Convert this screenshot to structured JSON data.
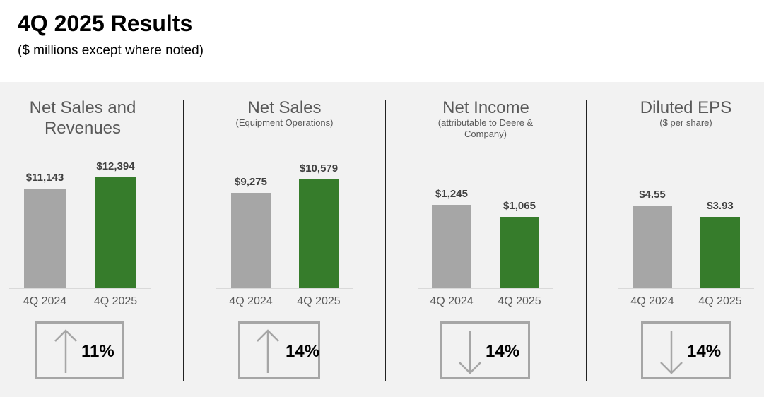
{
  "header": {
    "title": "4Q 2025 Results",
    "subtitle": "($ millions except where noted)"
  },
  "colors": {
    "prior": "#a6a6a6",
    "current": "#367c2b",
    "panel_bg": "#f2f2f2",
    "box_border": "#a6a6a6"
  },
  "chart_data": [
    {
      "type": "bar",
      "title": "Net Sales and Revenues",
      "subtitle": "",
      "categories": [
        "4Q 2024",
        "4Q 2025"
      ],
      "values": [
        11143,
        12394
      ],
      "value_labels": [
        "$11,143",
        "$12,394"
      ],
      "change": {
        "direction": "up",
        "label": "11%"
      }
    },
    {
      "type": "bar",
      "title": "Net Sales",
      "subtitle": "(Equipment Operations)",
      "categories": [
        "4Q 2024",
        "4Q 2025"
      ],
      "values": [
        9275,
        10579
      ],
      "value_labels": [
        "$9,275",
        "$10,579"
      ],
      "change": {
        "direction": "up",
        "label": "14%"
      }
    },
    {
      "type": "bar",
      "title": "Net Income",
      "subtitle": "(attributable to Deere & Company)",
      "categories": [
        "4Q 2024",
        "4Q 2025"
      ],
      "values": [
        1245,
        1065
      ],
      "value_labels": [
        "$1,245",
        "$1,065"
      ],
      "change": {
        "direction": "down",
        "label": "14%"
      }
    },
    {
      "type": "bar",
      "title": "Diluted EPS",
      "subtitle": "($ per share)",
      "categories": [
        "4Q 2024",
        "4Q 2025"
      ],
      "values": [
        4.55,
        3.93
      ],
      "value_labels": [
        "$4.55",
        "$3.93"
      ],
      "change": {
        "direction": "down",
        "label": "14%"
      }
    }
  ]
}
